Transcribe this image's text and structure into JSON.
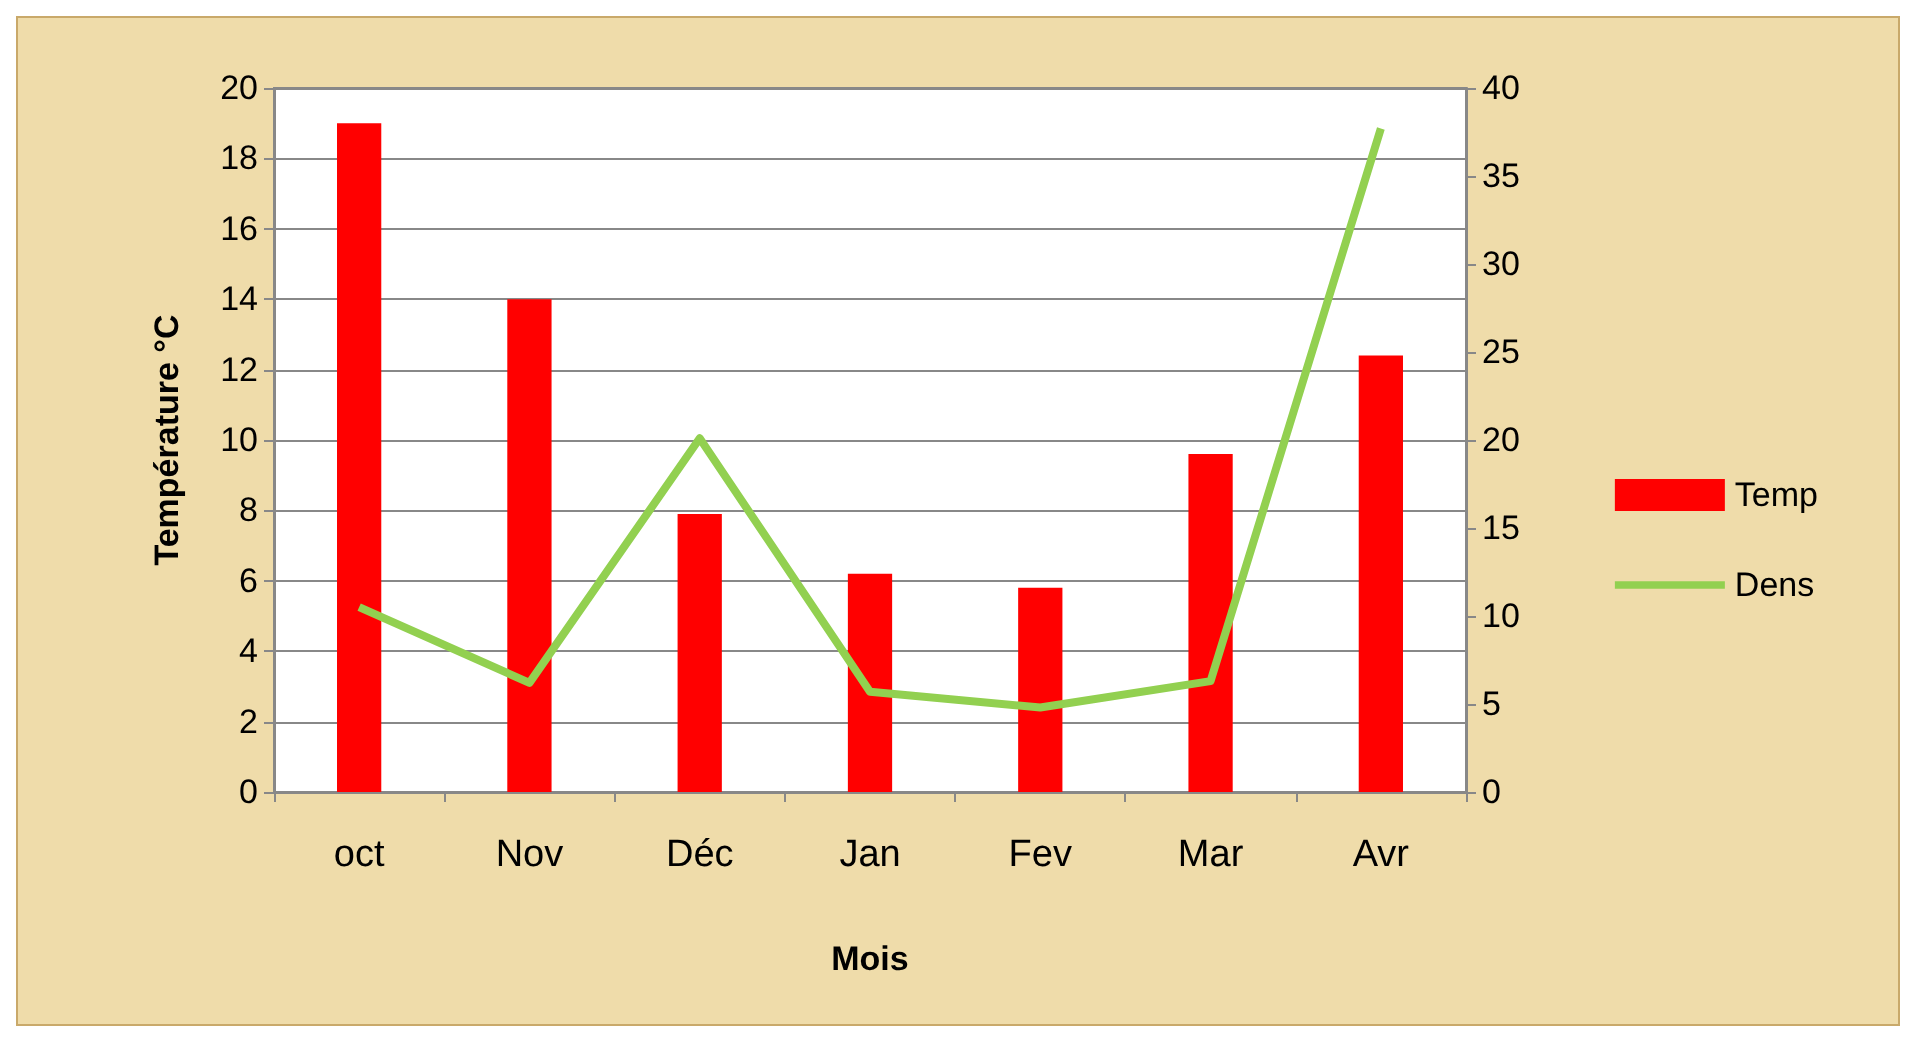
{
  "chart_data": {
    "type": "bar",
    "xlabel": "Mois",
    "ylabel": "Température °C",
    "categories": [
      "oct",
      "Nov",
      "Déc",
      "Jan",
      "Fev",
      "Mar",
      "Avr"
    ],
    "series": [
      {
        "name": "Temp",
        "color": "#ff0000",
        "values": [
          19,
          14,
          7.9,
          6.2,
          5.8,
          9.6,
          12.4
        ]
      },
      {
        "name": "Dens",
        "type": "line",
        "axis": "y2",
        "color": "#92d050",
        "values": [
          10.5,
          6.2,
          20.1,
          5.7,
          4.8,
          6.3,
          37.7
        ]
      }
    ],
    "ylim": [
      0,
      20
    ],
    "yticks": [
      0,
      2,
      4,
      6,
      8,
      10,
      12,
      14,
      16,
      18,
      20
    ],
    "y2lim": [
      0,
      40
    ],
    "y2ticks": [
      0,
      5,
      10,
      15,
      20,
      25,
      30,
      35,
      40
    ],
    "grid": "y",
    "legend": "right",
    "marker": "none"
  }
}
